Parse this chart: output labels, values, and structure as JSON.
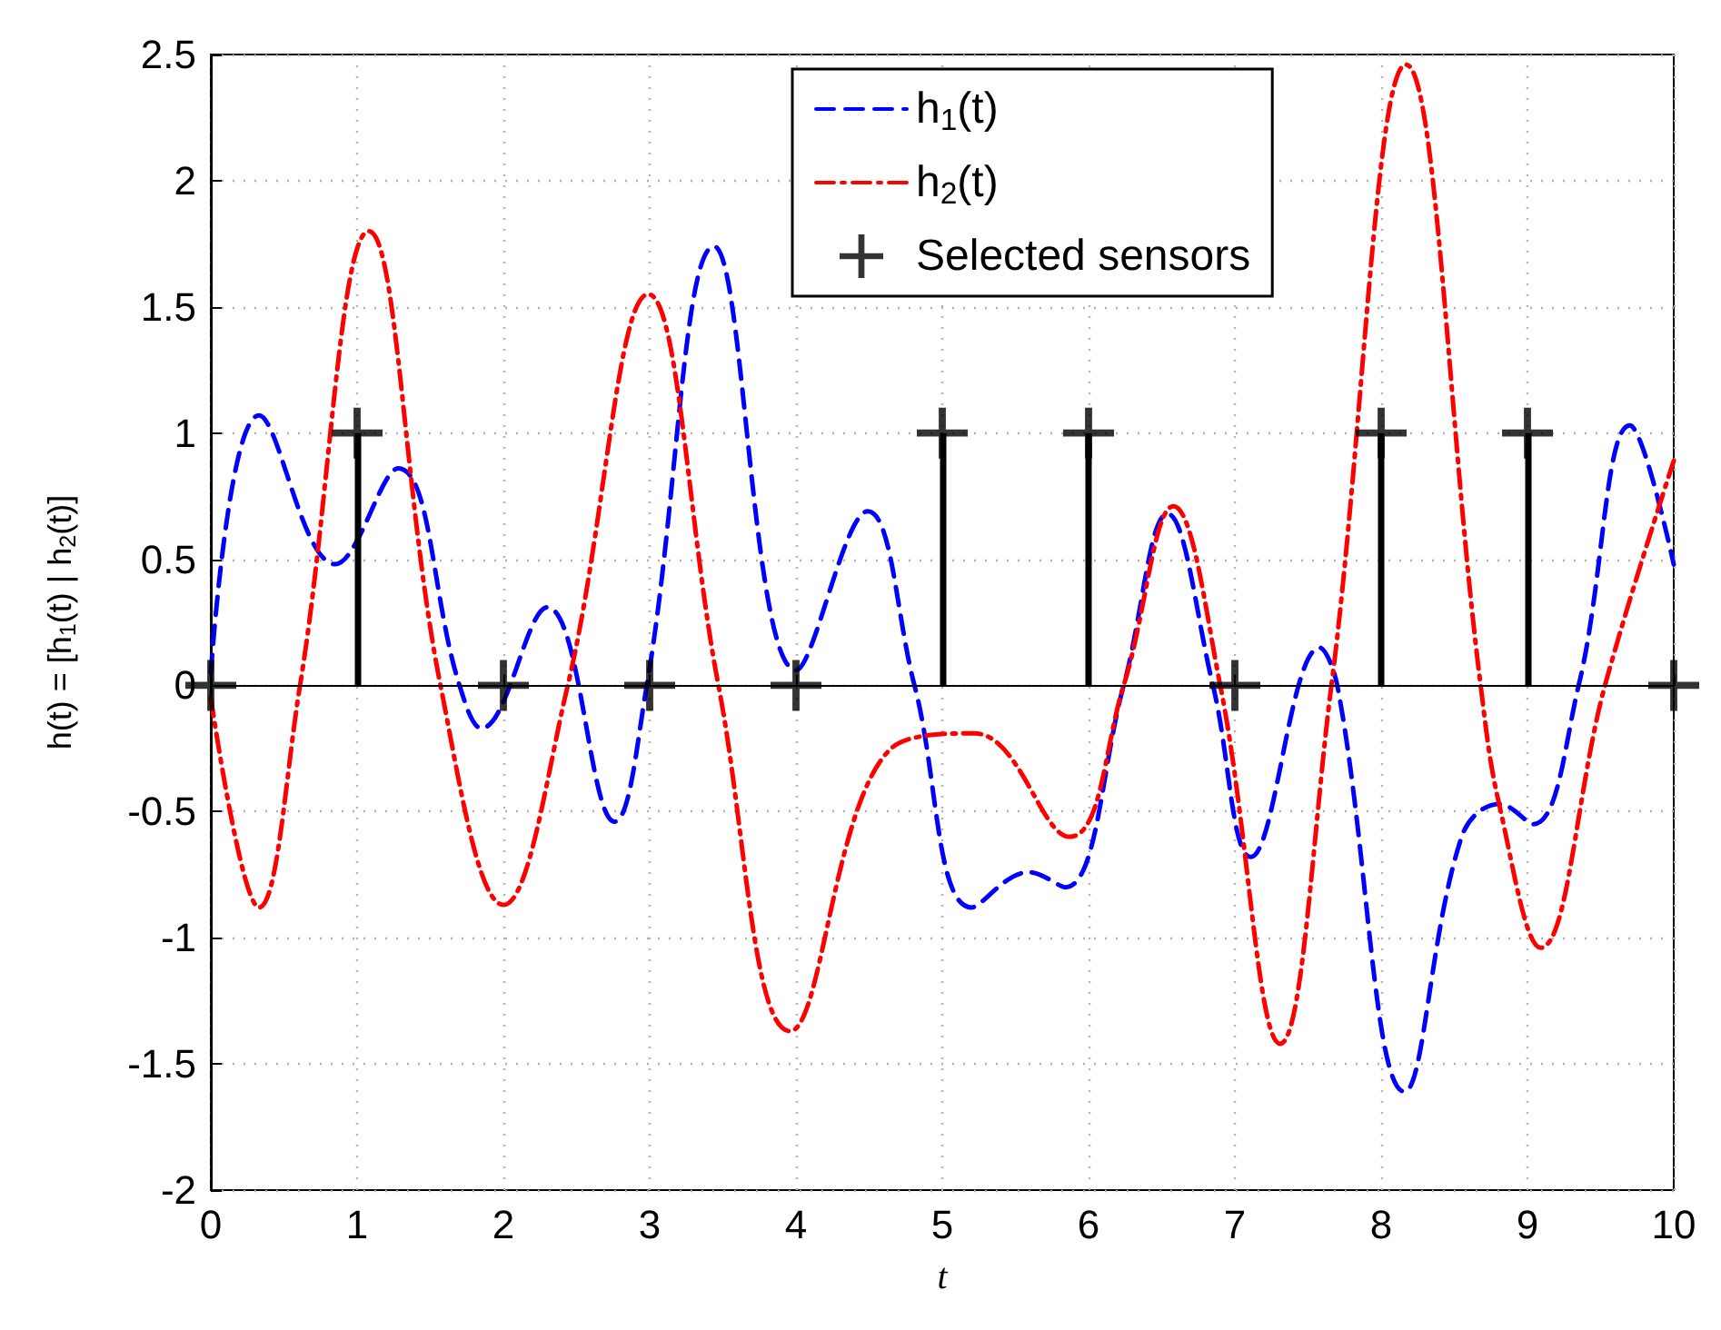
{
  "chart_data": {
    "type": "line",
    "xlabel": "t",
    "ylabel": "h(t) = [h$_{1}$(t) | h$_{2}$(t)]",
    "xlim": [
      0,
      10
    ],
    "xticks": [
      0,
      1,
      2,
      3,
      4,
      5,
      6,
      7,
      8,
      9,
      10
    ],
    "ylim": [
      -2,
      2.5
    ],
    "yticks": [
      -2,
      -1.5,
      -1,
      -0.5,
      0,
      0.5,
      1,
      1.5,
      2,
      2.5
    ],
    "grid": true,
    "legend": "top",
    "ref_lines": [
      {
        "axis": "y",
        "value": 0,
        "color": "#000000",
        "line_style": "solid"
      }
    ],
    "series": [
      {
        "name": "h$_{1}$(t)",
        "color": "#0000ff",
        "line_style": "dashed",
        "marker": "none",
        "x": [
          0,
          0.33,
          0.85,
          1.28,
          1.7,
          1.85,
          2.3,
          2.76,
          2.98,
          3.44,
          4.0,
          4.49,
          4.81,
          5.2,
          5.59,
          5.84,
          6.24,
          6.54,
          6.85,
          7.11,
          7.58,
          7.7,
          8.16,
          8.55,
          8.81,
          9.04,
          9.35,
          9.7,
          10
        ],
        "values": [
          0.05,
          1.07,
          0.48,
          0.86,
          0,
          -0.17,
          0.31,
          -0.54,
          0,
          1.74,
          0.06,
          0.69,
          0,
          -0.88,
          -0.74,
          -0.8,
          0,
          0.68,
          0,
          -0.68,
          0.15,
          0,
          -1.61,
          -0.6,
          -0.47,
          -0.55,
          0,
          1.03,
          0.48
        ]
      },
      {
        "name": "h$_{2}$(t)",
        "color": "#ff0000",
        "line_style": "dashdot",
        "marker": "none",
        "x": [
          0,
          0.33,
          0.61,
          1.08,
          1.57,
          2.0,
          2.44,
          2.99,
          3.47,
          3.96,
          4.65,
          5.22,
          5.87,
          6.24,
          6.58,
          6.9,
          7.31,
          7.66,
          8.17,
          8.68,
          8.81,
          9.09,
          9.53,
          10
        ],
        "values": [
          -0.05,
          -0.88,
          0,
          1.8,
          0,
          -0.87,
          0,
          1.55,
          0,
          -1.37,
          -0.25,
          -0.19,
          -0.6,
          0,
          0.71,
          0,
          -1.42,
          0,
          2.46,
          0,
          -0.48,
          -1.04,
          0,
          0.89
        ]
      },
      {
        "name": "Selected sensors",
        "type": "lollipop",
        "color": "#000000",
        "marker": "cross",
        "x": [
          0,
          1,
          2,
          3,
          4,
          5,
          6,
          7,
          8,
          9,
          10
        ],
        "values": [
          0,
          1,
          0,
          0,
          0,
          1,
          1,
          0,
          1,
          1,
          0
        ]
      }
    ]
  }
}
